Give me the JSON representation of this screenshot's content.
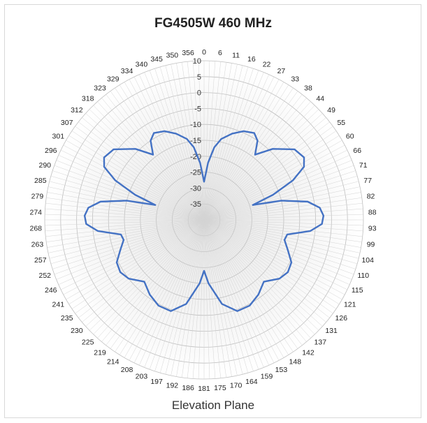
{
  "chart_data": {
    "type": "polar-line",
    "title": "FG4505W 460 MHz",
    "footer": "Elevation Plane",
    "radial_range": [
      -40,
      10
    ],
    "radial_ticks": [
      10,
      5,
      0,
      -5,
      -10,
      -15,
      -20,
      -25,
      -30,
      -35
    ],
    "angle_labels": [
      "0",
      "6",
      "11",
      "16",
      "22",
      "27",
      "33",
      "38",
      "44",
      "49",
      "55",
      "60",
      "66",
      "71",
      "77",
      "82",
      "88",
      "93",
      "99",
      "104",
      "110",
      "115",
      "121",
      "126",
      "131",
      "137",
      "142",
      "148",
      "153",
      "159",
      "164",
      "170",
      "175",
      "181",
      "186",
      "192",
      "197",
      "203",
      "208",
      "214",
      "219",
      "225",
      "230",
      "235",
      "241",
      "246",
      "252",
      "257",
      "263",
      "268",
      "274",
      "279",
      "285",
      "290",
      "296",
      "301",
      "307",
      "312",
      "318",
      "323",
      "329",
      "334",
      "340",
      "345",
      "350",
      "356"
    ],
    "grid": true,
    "series": [
      {
        "color": "#4472c4",
        "points": [
          [
            0,
            -28
          ],
          [
            4,
            -22
          ],
          [
            8,
            -17
          ],
          [
            12,
            -14
          ],
          [
            18,
            -11.5
          ],
          [
            24,
            -9.5
          ],
          [
            30,
            -8.5
          ],
          [
            34,
            -10
          ],
          [
            38,
            -14
          ],
          [
            44,
            -9
          ],
          [
            52,
            -4
          ],
          [
            58,
            -3
          ],
          [
            62,
            -4.5
          ],
          [
            66,
            -9.5
          ],
          [
            70,
            -17
          ],
          [
            73,
            -24
          ],
          [
            76,
            -15
          ],
          [
            80,
            -7
          ],
          [
            84,
            -3.5
          ],
          [
            88,
            -2.5
          ],
          [
            92,
            -3
          ],
          [
            96,
            -6.5
          ],
          [
            100,
            -13.5
          ],
          [
            104,
            -14
          ],
          [
            110,
            -12
          ],
          [
            116,
            -9.5
          ],
          [
            122,
            -9
          ],
          [
            128,
            -10
          ],
          [
            136,
            -13
          ],
          [
            144,
            -11
          ],
          [
            152,
            -9.5
          ],
          [
            160,
            -9.5
          ],
          [
            168,
            -13
          ],
          [
            176,
            -20
          ],
          [
            180,
            -24
          ],
          [
            184,
            -20
          ],
          [
            192,
            -13
          ],
          [
            200,
            -9.5
          ],
          [
            208,
            -9.5
          ],
          [
            216,
            -11
          ],
          [
            224,
            -13
          ],
          [
            232,
            -10
          ],
          [
            238,
            -9
          ],
          [
            244,
            -9.5
          ],
          [
            250,
            -12
          ],
          [
            256,
            -14
          ],
          [
            260,
            -13.5
          ],
          [
            264,
            -6.5
          ],
          [
            268,
            -3
          ],
          [
            272,
            -2.5
          ],
          [
            276,
            -3.5
          ],
          [
            280,
            -7
          ],
          [
            284,
            -15
          ],
          [
            287,
            -24
          ],
          [
            290,
            -17
          ],
          [
            294,
            -9.5
          ],
          [
            298,
            -4.5
          ],
          [
            302,
            -3
          ],
          [
            308,
            -4
          ],
          [
            316,
            -9
          ],
          [
            322,
            -14
          ],
          [
            326,
            -10
          ],
          [
            330,
            -8.5
          ],
          [
            336,
            -9.5
          ],
          [
            342,
            -11.5
          ],
          [
            348,
            -14
          ],
          [
            352,
            -17
          ],
          [
            356,
            -22
          ],
          [
            360,
            -28
          ]
        ]
      }
    ]
  }
}
